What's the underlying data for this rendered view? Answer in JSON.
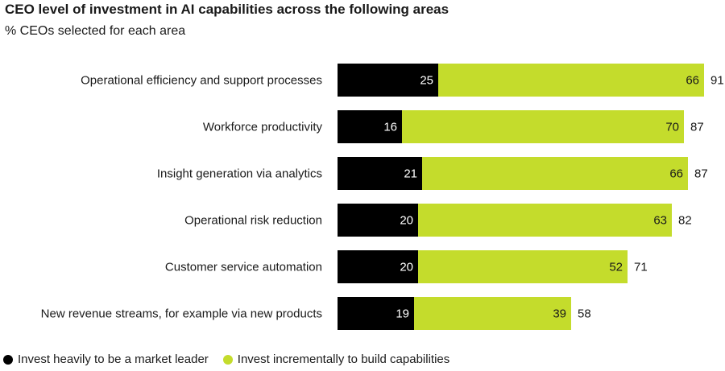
{
  "chart_data": {
    "type": "bar",
    "orientation": "horizontal",
    "stacked": true,
    "title": "CEO level of investment in AI capabilities across the following areas",
    "subtitle": "% CEOs selected for each area",
    "categories": [
      "Operational efficiency and support processes",
      "Workforce productivity",
      "Insight generation via analytics",
      "Operational risk reduction",
      "Customer service automation",
      "New revenue streams, for example via new products"
    ],
    "series": [
      {
        "name": "Invest heavily to be a market leader",
        "color": "#000000",
        "values": [
          25,
          16,
          21,
          20,
          20,
          19
        ]
      },
      {
        "name": "Invest incrementally to build capabilities",
        "color": "#c4dc2c",
        "values": [
          66,
          70,
          66,
          63,
          52,
          39
        ]
      }
    ],
    "totals": [
      91,
      87,
      87,
      82,
      71,
      58
    ],
    "xlim": [
      0,
      91
    ],
    "legend_position": "bottom-left"
  }
}
